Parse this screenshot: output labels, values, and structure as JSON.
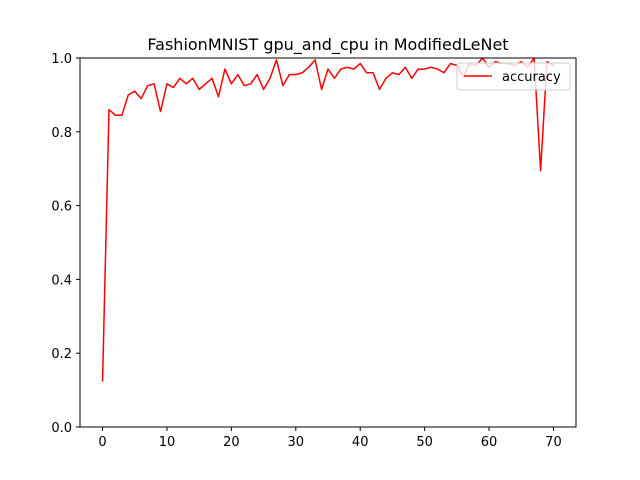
{
  "chart_data": {
    "type": "line",
    "title": "FashionMNIST gpu_and_cpu in ModifiedLeNet",
    "xlabel": "",
    "ylabel": "",
    "xlim": [
      -3.5,
      73.5
    ],
    "ylim": [
      0,
      1.0
    ],
    "xticks": [
      0,
      10,
      20,
      30,
      40,
      50,
      60,
      70
    ],
    "yticks": [
      0.0,
      0.2,
      0.4,
      0.6,
      0.8,
      1.0
    ],
    "xtick_labels": [
      "0",
      "10",
      "20",
      "30",
      "40",
      "50",
      "60",
      "70"
    ],
    "ytick_labels": [
      "0.0",
      "0.2",
      "0.4",
      "0.6",
      "0.8",
      "1.0"
    ],
    "legend_position": "top-right",
    "grid": false,
    "series": [
      {
        "name": "accuracy",
        "color": "#ff0000",
        "x": [
          0,
          1,
          2,
          3,
          4,
          5,
          6,
          7,
          8,
          9,
          10,
          11,
          12,
          13,
          14,
          15,
          16,
          17,
          18,
          19,
          20,
          21,
          22,
          23,
          24,
          25,
          26,
          27,
          28,
          29,
          30,
          31,
          32,
          33,
          34,
          35,
          36,
          37,
          38,
          39,
          40,
          41,
          42,
          43,
          44,
          45,
          46,
          47,
          48,
          49,
          50,
          51,
          52,
          53,
          54,
          55,
          56,
          57,
          58,
          59,
          60,
          61,
          62,
          63,
          64,
          65,
          66,
          67,
          68,
          69,
          70
        ],
        "values": [
          0.125,
          0.86,
          0.845,
          0.845,
          0.9,
          0.91,
          0.89,
          0.925,
          0.93,
          0.855,
          0.93,
          0.92,
          0.945,
          0.93,
          0.945,
          0.915,
          0.93,
          0.945,
          0.895,
          0.97,
          0.93,
          0.955,
          0.925,
          0.93,
          0.955,
          0.915,
          0.945,
          0.995,
          0.925,
          0.955,
          0.955,
          0.96,
          0.975,
          0.995,
          0.915,
          0.97,
          0.945,
          0.97,
          0.975,
          0.97,
          0.985,
          0.96,
          0.96,
          0.915,
          0.945,
          0.96,
          0.955,
          0.975,
          0.945,
          0.97,
          0.97,
          0.975,
          0.97,
          0.96,
          0.985,
          0.98,
          0.95,
          0.985,
          0.98,
          1.0,
          0.975,
          0.99,
          0.985,
          0.985,
          0.98,
          0.99,
          0.975,
          1.0,
          0.695,
          0.99,
          0.98
        ]
      }
    ]
  }
}
